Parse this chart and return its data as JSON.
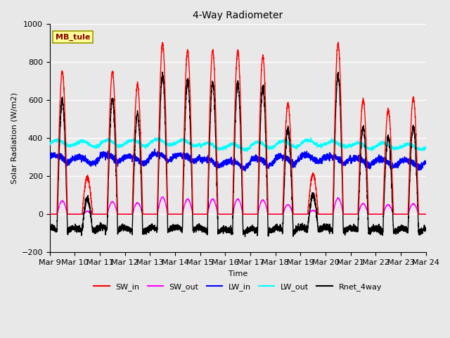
{
  "title": "4-Way Radiometer",
  "xlabel": "Time",
  "ylabel": "Solar Radiation (W/m2)",
  "ylim": [
    -200,
    1000
  ],
  "annotation": "MB_tule",
  "annotation_color": "#8B0000",
  "annotation_bg": "#FFFF99",
  "background_color": "#E8E8E8",
  "x_ticks": [
    "Mar 9",
    "Mar 10",
    "Mar 11",
    "Mar 12",
    "Mar 13",
    "Mar 14",
    "Mar 15",
    "Mar 16",
    "Mar 17",
    "Mar 18",
    "Mar 19",
    "Mar 20",
    "Mar 21",
    "Mar 22",
    "Mar 23",
    "Mar 24"
  ],
  "series": {
    "SW_in": {
      "color": "#FF0000",
      "lw": 1.0
    },
    "SW_out": {
      "color": "#FF00FF",
      "lw": 1.0
    },
    "LW_in": {
      "color": "#0000FF",
      "lw": 1.0
    },
    "LW_out": {
      "color": "#00FFFF",
      "lw": 1.0
    },
    "Rnet_4way": {
      "color": "#000000",
      "lw": 1.0
    }
  },
  "days": 15,
  "pts_per_day": 288,
  "peak_amps_sw_in": [
    750,
    190,
    750,
    680,
    900,
    860,
    860,
    860,
    830,
    580,
    210,
    900,
    600,
    550,
    610
  ],
  "peak_amps_sw_out": [
    70,
    15,
    65,
    60,
    90,
    80,
    80,
    80,
    75,
    50,
    20,
    85,
    55,
    50,
    55
  ],
  "lw_out_base": [
    375,
    370,
    375,
    375,
    380,
    375,
    360,
    355,
    365,
    370,
    375,
    370,
    360,
    360,
    355
  ],
  "lw_in_base": [
    290,
    285,
    295,
    285,
    300,
    295,
    270,
    260,
    275,
    285,
    295,
    285,
    275,
    270,
    265
  ],
  "night_rnet": -100
}
